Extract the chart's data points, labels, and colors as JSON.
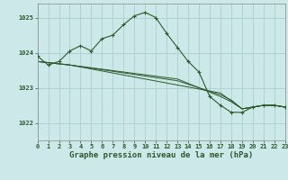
{
  "title": "Graphe pression niveau de la mer (hPa)",
  "background_color": "#cce8e8",
  "grid_color": "#aad0d0",
  "line_color": "#2d5a2d",
  "xlim": [
    0,
    23
  ],
  "ylim": [
    1021.5,
    1025.4
  ],
  "yticks": [
    1022,
    1023,
    1024,
    1025
  ],
  "xticks": [
    0,
    1,
    2,
    3,
    4,
    5,
    6,
    7,
    8,
    9,
    10,
    11,
    12,
    13,
    14,
    15,
    16,
    17,
    18,
    19,
    20,
    21,
    22,
    23
  ],
  "main_series": {
    "x": [
      0,
      1,
      2,
      3,
      4,
      5,
      6,
      7,
      8,
      9,
      10,
      11,
      12,
      13,
      14,
      15,
      16,
      17,
      18,
      19,
      20,
      21,
      22,
      23
    ],
    "y": [
      1023.9,
      1023.65,
      1023.75,
      1024.05,
      1024.2,
      1024.05,
      1024.4,
      1024.5,
      1024.8,
      1025.05,
      1025.15,
      1025.0,
      1024.55,
      1024.15,
      1023.75,
      1023.45,
      1022.75,
      1022.5,
      1022.3,
      1022.3,
      1022.45,
      1022.5,
      1022.5,
      1022.45
    ]
  },
  "aux_series": [
    {
      "x": [
        0,
        3,
        17,
        19,
        20,
        21,
        22,
        23
      ],
      "y": [
        1023.75,
        1023.65,
        1022.85,
        1022.4,
        1022.45,
        1022.5,
        1022.5,
        1022.45
      ]
    },
    {
      "x": [
        0,
        3,
        13,
        17,
        18,
        19,
        20,
        21,
        22,
        23
      ],
      "y": [
        1023.75,
        1023.65,
        1023.25,
        1022.75,
        1022.6,
        1022.4,
        1022.45,
        1022.5,
        1022.5,
        1022.45
      ]
    },
    {
      "x": [
        0,
        3,
        13,
        17,
        18,
        19,
        20,
        21,
        22,
        23
      ],
      "y": [
        1023.75,
        1023.65,
        1023.2,
        1022.8,
        1022.65,
        1022.4,
        1022.45,
        1022.5,
        1022.5,
        1022.45
      ]
    }
  ],
  "title_fontsize": 6.5,
  "tick_fontsize": 5.0
}
